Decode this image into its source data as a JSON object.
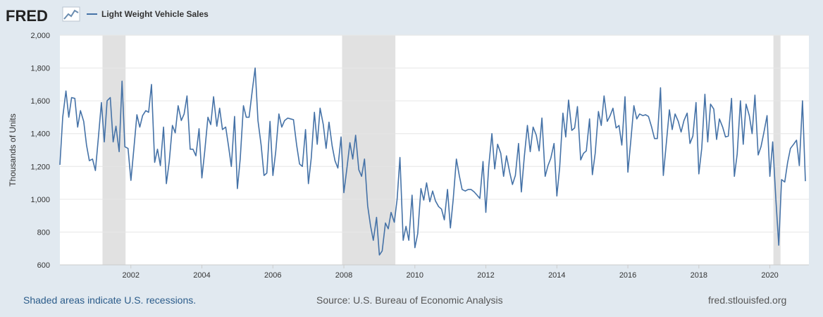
{
  "header": {
    "logo_text": "FRED",
    "legend_label": "Light Weight Vehicle Sales",
    "series_color": "#4572a7"
  },
  "footer": {
    "recession_note": "Shaded areas indicate U.S. recessions.",
    "source": "Source: U.S. Bureau of Economic Analysis",
    "site": "fred.stlouisfed.org"
  },
  "chart_data": {
    "type": "line",
    "title": "",
    "xlabel": "",
    "ylabel": "Thousands of Units",
    "ylim": [
      600,
      2000
    ],
    "xlim": [
      2000.0,
      2021.1
    ],
    "y_ticks": [
      600,
      800,
      1000,
      1200,
      1400,
      1600,
      1800,
      2000
    ],
    "y_tick_labels": [
      "600",
      "800",
      "1,000",
      "1,200",
      "1,400",
      "1,600",
      "1,800",
      "2,000"
    ],
    "x_ticks": [
      2002,
      2004,
      2006,
      2008,
      2010,
      2012,
      2014,
      2016,
      2018,
      2020
    ],
    "x_tick_labels": [
      "2002",
      "2004",
      "2006",
      "2008",
      "2010",
      "2012",
      "2014",
      "2016",
      "2018",
      "2020"
    ],
    "grid": true,
    "recessions": [
      [
        2001.2,
        2001.85
      ],
      [
        2007.95,
        2009.45
      ],
      [
        2020.1,
        2020.3
      ]
    ],
    "recession_color": "#e1e1e1",
    "series": [
      {
        "name": "Light Weight Vehicle Sales",
        "color": "#4572a7",
        "x": [
          2000.0,
          2000.08,
          2000.17,
          2000.25,
          2000.33,
          2000.42,
          2000.5,
          2000.58,
          2000.67,
          2000.75,
          2000.83,
          2000.92,
          2001.0,
          2001.08,
          2001.17,
          2001.25,
          2001.33,
          2001.42,
          2001.5,
          2001.58,
          2001.67,
          2001.75,
          2001.83,
          2001.92,
          2002.0,
          2002.08,
          2002.17,
          2002.25,
          2002.33,
          2002.42,
          2002.5,
          2002.58,
          2002.67,
          2002.75,
          2002.83,
          2002.92,
          2003.0,
          2003.08,
          2003.17,
          2003.25,
          2003.33,
          2003.42,
          2003.5,
          2003.58,
          2003.67,
          2003.75,
          2003.83,
          2003.92,
          2004.0,
          2004.08,
          2004.17,
          2004.25,
          2004.33,
          2004.42,
          2004.5,
          2004.58,
          2004.67,
          2004.75,
          2004.83,
          2004.92,
          2005.0,
          2005.08,
          2005.17,
          2005.25,
          2005.33,
          2005.42,
          2005.5,
          2005.58,
          2005.67,
          2005.75,
          2005.83,
          2005.92,
          2006.0,
          2006.08,
          2006.17,
          2006.25,
          2006.33,
          2006.42,
          2006.5,
          2006.58,
          2006.67,
          2006.75,
          2006.83,
          2006.92,
          2007.0,
          2007.08,
          2007.17,
          2007.25,
          2007.33,
          2007.42,
          2007.5,
          2007.58,
          2007.67,
          2007.75,
          2007.83,
          2007.92,
          2008.0,
          2008.08,
          2008.17,
          2008.25,
          2008.33,
          2008.42,
          2008.5,
          2008.58,
          2008.67,
          2008.75,
          2008.83,
          2008.92,
          2009.0,
          2009.08,
          2009.17,
          2009.25,
          2009.33,
          2009.42,
          2009.5,
          2009.58,
          2009.67,
          2009.75,
          2009.83,
          2009.92,
          2010.0,
          2010.08,
          2010.17,
          2010.25,
          2010.33,
          2010.42,
          2010.5,
          2010.58,
          2010.67,
          2010.75,
          2010.83,
          2010.92,
          2011.0,
          2011.08,
          2011.17,
          2011.25,
          2011.33,
          2011.42,
          2011.5,
          2011.58,
          2011.67,
          2011.75,
          2011.83,
          2011.92,
          2012.0,
          2012.08,
          2012.17,
          2012.25,
          2012.33,
          2012.42,
          2012.5,
          2012.58,
          2012.67,
          2012.75,
          2012.83,
          2012.92,
          2013.0,
          2013.08,
          2013.17,
          2013.25,
          2013.33,
          2013.42,
          2013.5,
          2013.58,
          2013.67,
          2013.75,
          2013.83,
          2013.92,
          2014.0,
          2014.08,
          2014.17,
          2014.25,
          2014.33,
          2014.42,
          2014.5,
          2014.58,
          2014.67,
          2014.75,
          2014.83,
          2014.92,
          2015.0,
          2015.08,
          2015.17,
          2015.25,
          2015.33,
          2015.42,
          2015.5,
          2015.58,
          2015.67,
          2015.75,
          2015.83,
          2015.92,
          2016.0,
          2016.08,
          2016.17,
          2016.25,
          2016.33,
          2016.42,
          2016.5,
          2016.58,
          2016.67,
          2016.75,
          2016.83,
          2016.92,
          2017.0,
          2017.08,
          2017.17,
          2017.25,
          2017.33,
          2017.42,
          2017.5,
          2017.58,
          2017.67,
          2017.75,
          2017.83,
          2017.92,
          2018.0,
          2018.08,
          2018.17,
          2018.25,
          2018.33,
          2018.42,
          2018.5,
          2018.58,
          2018.67,
          2018.75,
          2018.83,
          2018.92,
          2019.0,
          2019.08,
          2019.17,
          2019.25,
          2019.33,
          2019.42,
          2019.5,
          2019.58,
          2019.67,
          2019.75,
          2019.83,
          2019.92,
          2020.0,
          2020.08,
          2020.17,
          2020.25,
          2020.33,
          2020.42,
          2020.5,
          2020.58,
          2020.67,
          2020.75,
          2020.83,
          2020.92,
          2021.0
        ],
        "values": [
          1210,
          1500,
          1660,
          1500,
          1620,
          1615,
          1440,
          1540,
          1475,
          1330,
          1235,
          1245,
          1175,
          1365,
          1590,
          1350,
          1600,
          1620,
          1350,
          1445,
          1290,
          1720,
          1320,
          1310,
          1115,
          1300,
          1515,
          1440,
          1510,
          1540,
          1530,
          1700,
          1225,
          1305,
          1205,
          1440,
          1095,
          1230,
          1450,
          1405,
          1570,
          1480,
          1520,
          1630,
          1305,
          1305,
          1265,
          1430,
          1130,
          1290,
          1500,
          1455,
          1625,
          1445,
          1555,
          1425,
          1440,
          1325,
          1200,
          1505,
          1065,
          1245,
          1570,
          1500,
          1500,
          1665,
          1800,
          1480,
          1330,
          1145,
          1160,
          1475,
          1145,
          1290,
          1520,
          1440,
          1480,
          1495,
          1490,
          1485,
          1330,
          1215,
          1200,
          1425,
          1095,
          1250,
          1530,
          1335,
          1555,
          1455,
          1310,
          1470,
          1325,
          1235,
          1190,
          1380,
          1040,
          1180,
          1345,
          1245,
          1390,
          1180,
          1140,
          1245,
          960,
          840,
          750,
          890,
          660,
          685,
          855,
          820,
          920,
          860,
          1000,
          1255,
          750,
          835,
          750,
          1025,
          705,
          790,
          1065,
          995,
          1100,
          985,
          1050,
          990,
          955,
          940,
          875,
          1060,
          825,
          1000,
          1245,
          1145,
          1060,
          1050,
          1060,
          1060,
          1045,
          1025,
          1005,
          1230,
          920,
          1200,
          1400,
          1185,
          1335,
          1280,
          1140,
          1265,
          1165,
          1090,
          1145,
          1340,
          1045,
          1255,
          1450,
          1290,
          1440,
          1390,
          1295,
          1495,
          1140,
          1205,
          1250,
          1340,
          1020,
          1195,
          1525,
          1380,
          1605,
          1420,
          1435,
          1565,
          1240,
          1280,
          1295,
          1490,
          1150,
          1280,
          1535,
          1450,
          1630,
          1475,
          1510,
          1555,
          1435,
          1450,
          1330,
          1625,
          1165,
          1350,
          1570,
          1490,
          1520,
          1510,
          1515,
          1505,
          1440,
          1370,
          1370,
          1680,
          1145,
          1335,
          1545,
          1425,
          1520,
          1475,
          1410,
          1480,
          1525,
          1340,
          1385,
          1590,
          1155,
          1310,
          1640,
          1350,
          1580,
          1550,
          1365,
          1490,
          1440,
          1380,
          1385,
          1615,
          1140,
          1275,
          1600,
          1335,
          1580,
          1510,
          1400,
          1635,
          1270,
          1320,
          1405,
          1510,
          1140,
          1350,
          1000,
          720,
          1120,
          1105,
          1225,
          1310,
          1335,
          1360,
          1205,
          1600,
          1110
        ]
      }
    ]
  }
}
